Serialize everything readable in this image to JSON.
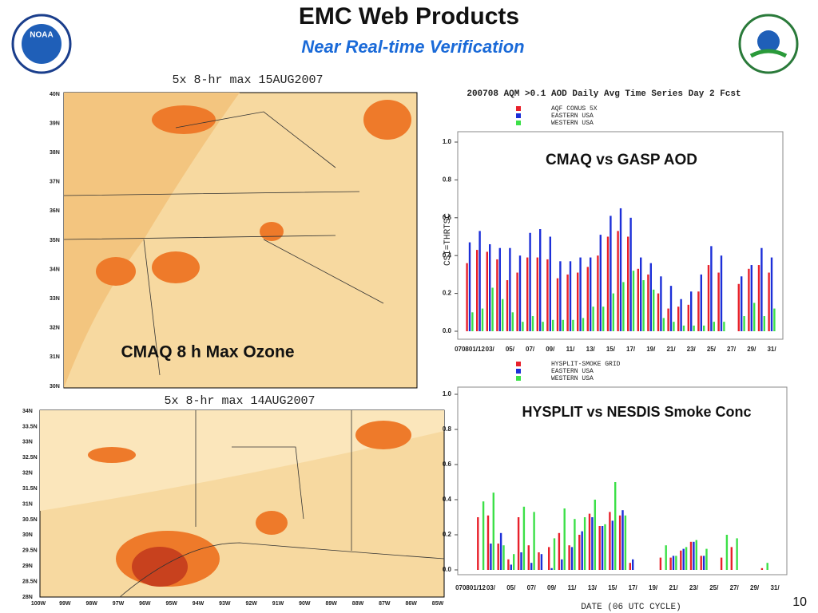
{
  "header": {
    "title": "EMC Web Products",
    "subtitle": "Near Real-time Verification",
    "page_number": "10",
    "logo": "NOAA"
  },
  "maps": [
    {
      "title": "5x 8-hr max 15AUG2007",
      "annotation": "CMAQ 8 h Max Ozone",
      "lat_labels": [
        "40N",
        "39N",
        "38N",
        "37N",
        "36N",
        "35N",
        "34N",
        "33N",
        "32N",
        "31N",
        "30N"
      ],
      "lon_labels": []
    },
    {
      "title": "5x 8-hr max 14AUG2007",
      "lat_labels": [
        "34N",
        "33.5N",
        "33N",
        "32.5N",
        "32N",
        "31.5N",
        "31N",
        "30.5N",
        "30N",
        "29.5N",
        "29N",
        "28.5N",
        "28N"
      ],
      "lon_labels": [
        "100W",
        "99W",
        "98W",
        "97W",
        "96W",
        "95W",
        "94W",
        "93W",
        "92W",
        "91W",
        "90W",
        "89W",
        "88W",
        "87W",
        "86W",
        "85W"
      ]
    }
  ],
  "chart_data": [
    {
      "type": "bar",
      "title": "200708 AQM >0.1 AOD Daily Avg Time Series Day 2 Fcst",
      "annotation": "CMAQ vs GASP AOD",
      "y_label": "CSI=THRTSC",
      "categories": [
        "070801/12",
        null,
        "03/",
        null,
        "05/",
        null,
        "07/",
        null,
        "09/",
        null,
        "11/",
        null,
        "13/",
        null,
        "15/",
        null,
        "17/",
        null,
        "19/",
        null,
        "21/",
        null,
        "23/",
        null,
        "25/",
        null,
        "27/",
        null,
        "29/",
        null,
        "31/"
      ],
      "ylim": [
        0,
        1
      ],
      "yticks": [
        {
          "value": 0,
          "label": "0.0"
        },
        {
          "value": 0.2,
          "label": "0.2"
        },
        {
          "value": 0.4,
          "label": "0.4"
        },
        {
          "value": 0.6,
          "label": "0.6"
        },
        {
          "value": 0.8,
          "label": "0.8"
        },
        {
          "value": 1,
          "label": "1.0"
        }
      ],
      "series": [
        {
          "name": "AQF CONUS 5X",
          "color": "#e8202a",
          "values": [
            0.36,
            0.43,
            0.42,
            0.38,
            0.27,
            0.31,
            0.39,
            0.39,
            0.38,
            0.28,
            0.3,
            0.31,
            0.34,
            0.4,
            0.5,
            0.53,
            0.5,
            0.33,
            0.3,
            0.2,
            0.12,
            0.13,
            0.14,
            0.21,
            0.35,
            0.31,
            null,
            0.25,
            0.33,
            0.35,
            0.31
          ]
        },
        {
          "name": "EASTERN USA",
          "color": "#1c2fd8",
          "values": [
            0.47,
            0.53,
            0.46,
            0.44,
            0.44,
            0.4,
            0.52,
            0.54,
            0.5,
            0.37,
            0.37,
            0.39,
            0.39,
            0.51,
            0.61,
            0.65,
            0.6,
            0.39,
            0.36,
            0.29,
            0.24,
            0.17,
            0.21,
            0.3,
            0.45,
            0.4,
            null,
            0.29,
            0.35,
            0.44,
            0.39
          ]
        },
        {
          "name": "WESTERN USA",
          "color": "#3ce048",
          "values": [
            0.1,
            0.12,
            0.23,
            0.17,
            0.1,
            0.05,
            0.08,
            0.05,
            0.06,
            0.06,
            0.06,
            0.07,
            0.13,
            0.13,
            0.2,
            0.26,
            0.32,
            0.27,
            0.22,
            0.07,
            0.05,
            0.03,
            0.03,
            0.03,
            0.05,
            0.05,
            null,
            0.08,
            0.15,
            0.08,
            0.12
          ]
        }
      ]
    },
    {
      "type": "bar",
      "annotation": "HYSPLIT vs NESDIS Smoke Conc",
      "x_label": "DATE (06 UTC CYCLE)",
      "categories": [
        "070801/12",
        null,
        "03/",
        null,
        "05/",
        null,
        "07/",
        null,
        "09/",
        null,
        "11/",
        null,
        "13/",
        null,
        "15/",
        null,
        "17/",
        null,
        "19/",
        null,
        "21/",
        null,
        "23/",
        null,
        "25/",
        null,
        "27/",
        null,
        "29/",
        null,
        "31/"
      ],
      "ylim": [
        0,
        1
      ],
      "yticks": [
        {
          "value": 0,
          "label": "0.0"
        },
        {
          "value": 0.2,
          "label": "0.2"
        },
        {
          "value": 0.4,
          "label": "0.4"
        },
        {
          "value": 0.6,
          "label": "0.6"
        },
        {
          "value": 0.8,
          "label": "0.8"
        },
        {
          "value": 1,
          "label": "1.0"
        }
      ],
      "series": [
        {
          "name": "HYSPLIT-SMOKE GRID",
          "color": "#e8202a",
          "values": [
            null,
            0.3,
            0.31,
            0.15,
            0.06,
            0.3,
            0.14,
            0.1,
            0.13,
            0.21,
            0.14,
            0.2,
            0.32,
            0.25,
            0.33,
            0.31,
            0.04,
            null,
            null,
            0.07,
            0.07,
            0.11,
            0.16,
            0.08,
            null,
            0.07,
            0.13,
            null,
            null,
            0.01,
            null
          ]
        },
        {
          "name": "EASTERN USA",
          "color": "#1c2fd8",
          "values": [
            null,
            null,
            0.15,
            0.21,
            0.03,
            0.1,
            0.04,
            0.09,
            0.01,
            0.06,
            0.13,
            0.22,
            0.3,
            0.25,
            0.28,
            0.34,
            0.06,
            null,
            null,
            null,
            0.08,
            0.12,
            0.16,
            0.08,
            null,
            null,
            null,
            null,
            null,
            null,
            null
          ]
        },
        {
          "name": "WESTERN USA",
          "color": "#3ce048",
          "values": [
            null,
            0.39,
            0.44,
            0.14,
            0.09,
            0.36,
            0.33,
            null,
            0.18,
            0.35,
            0.29,
            0.3,
            0.4,
            0.26,
            0.5,
            0.31,
            null,
            null,
            null,
            0.14,
            0.08,
            0.13,
            0.17,
            0.12,
            null,
            0.2,
            0.18,
            null,
            null,
            0.04,
            null
          ]
        }
      ]
    }
  ]
}
